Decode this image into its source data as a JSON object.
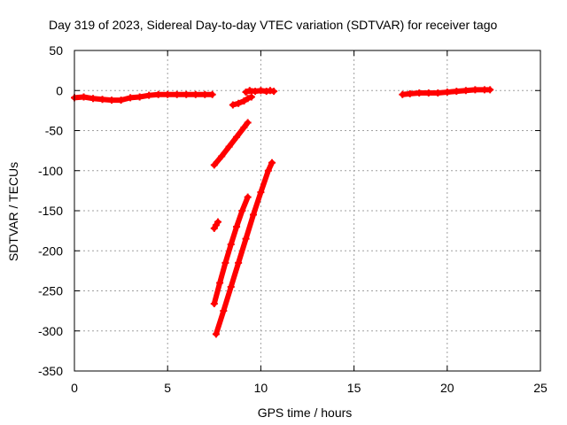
{
  "chart_data": {
    "type": "scatter",
    "title": "Day 319 of 2023, Sidereal Day-to-day VTEC variation (SDTVAR) for receiver tago",
    "xlabel": "GPS time / hours",
    "ylabel": "SDTVAR / TECUs",
    "xlim": [
      0,
      25
    ],
    "ylim": [
      -350,
      50
    ],
    "xticks": [
      "0",
      "5",
      "10",
      "15",
      "20",
      "25"
    ],
    "yticks": [
      "50",
      "0",
      "-50",
      "-100",
      "-150",
      "-200",
      "-250",
      "-300",
      "-350"
    ],
    "xtick_values": [
      0,
      5,
      10,
      15,
      20,
      25
    ],
    "ytick_values": [
      50,
      0,
      -50,
      -100,
      -150,
      -200,
      -250,
      -300,
      -350
    ],
    "grid": true,
    "marker": "plus",
    "series_color": "#ff0000",
    "segments": [
      {
        "x": [
          0.0,
          0.5,
          1.0,
          1.5,
          2.0,
          2.5,
          3.0,
          3.5,
          4.0,
          4.5,
          5.0,
          5.5,
          6.0,
          6.5,
          7.0,
          7.4
        ],
        "y": [
          -9,
          -8,
          -10,
          -11,
          -12,
          -12,
          -9,
          -8,
          -6,
          -5,
          -5,
          -5,
          -5,
          -5,
          -5,
          -5
        ]
      },
      {
        "x": [
          8.5,
          8.8,
          9.1,
          9.3,
          9.5
        ],
        "y": [
          -18,
          -16,
          -13,
          -10,
          -8
        ]
      },
      {
        "x": [
          9.2,
          9.4,
          9.7,
          10.0,
          10.3,
          10.5,
          10.7
        ],
        "y": [
          -2,
          0,
          -1,
          0,
          -1,
          0,
          -1
        ]
      },
      {
        "x": [
          7.5,
          7.9,
          8.3,
          8.7,
          9.1,
          9.3
        ],
        "y": [
          -93,
          -82,
          -70,
          -58,
          -46,
          -40
        ]
      },
      {
        "x": [
          7.5,
          7.6,
          7.7
        ],
        "y": [
          -172,
          -168,
          -164
        ]
      },
      {
        "x": [
          7.5,
          7.8,
          8.1,
          8.4,
          8.7,
          9.0,
          9.3
        ],
        "y": [
          -266,
          -240,
          -215,
          -192,
          -170,
          -150,
          -133
        ]
      },
      {
        "x": [
          7.6,
          8.0,
          8.4,
          8.8,
          9.2,
          9.6,
          10.0,
          10.4,
          10.6
        ],
        "y": [
          -304,
          -275,
          -245,
          -215,
          -185,
          -155,
          -127,
          -100,
          -90
        ]
      },
      {
        "x": [
          17.6,
          18.0,
          18.5,
          19.0,
          19.5,
          20.0,
          20.5,
          21.0,
          21.5,
          22.0,
          22.3
        ],
        "y": [
          -5,
          -4,
          -3,
          -3,
          -3,
          -2,
          -1,
          0,
          1,
          1,
          1
        ]
      }
    ]
  }
}
